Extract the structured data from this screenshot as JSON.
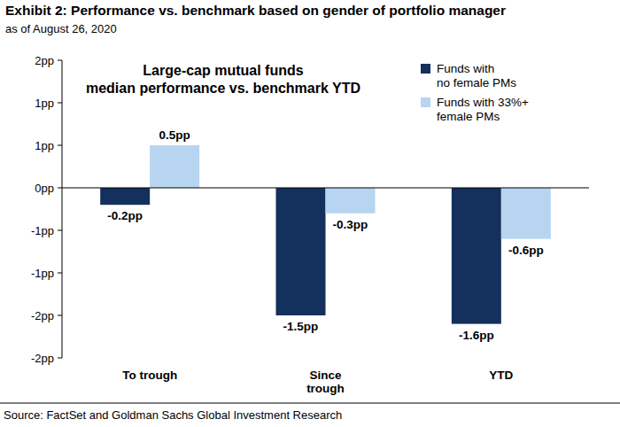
{
  "chart_data": {
    "type": "bar",
    "title": "Exhibit 2: Performance vs. benchmark based on gender of portfolio manager",
    "subtitle": "as of August 26, 2020",
    "annotations": [
      "Large-cap mutual funds",
      "median performance vs. benchmark YTD"
    ],
    "source": "Source: FactSet and Goldman Sachs Global Investment Research",
    "categories": [
      "To trough",
      "Since\ntrough",
      "YTD"
    ],
    "series": [
      {
        "name": "Funds with\nno female PMs",
        "color": "#14305c",
        "values": [
          -0.2,
          -1.5,
          -1.6
        ],
        "value_labels": [
          "-0.2pp",
          "-1.5pp",
          "-1.6pp"
        ]
      },
      {
        "name": "Funds with 33%+\nfemale PMs",
        "color": "#b7d5f0",
        "values": [
          0.5,
          -0.3,
          -0.6
        ],
        "value_labels": [
          "0.5pp",
          "-0.3pp",
          "-0.6pp"
        ]
      }
    ],
    "ylim": [
      -2,
      1.5
    ],
    "yticks": [
      {
        "value": 1.5,
        "label": "2pp"
      },
      {
        "value": 1,
        "label": "1pp"
      },
      {
        "value": 0.5,
        "label": "1pp"
      },
      {
        "value": 0,
        "label": "0pp"
      },
      {
        "value": -0.5,
        "label": "-1pp"
      },
      {
        "value": -1,
        "label": "-1pp"
      },
      {
        "value": -1.5,
        "label": "-2pp"
      },
      {
        "value": -2,
        "label": "-2pp"
      }
    ],
    "grid": false,
    "legend": "top-right",
    "data_labels": true
  }
}
